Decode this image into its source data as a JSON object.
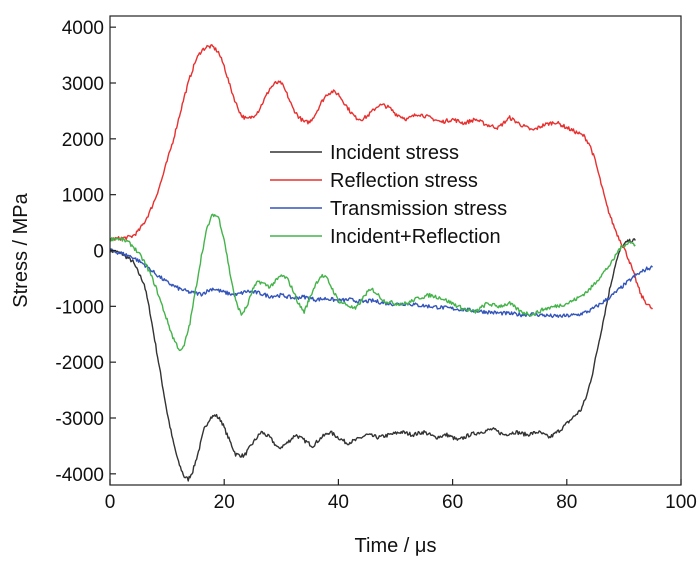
{
  "chart_data": {
    "type": "line",
    "xlabel": "Time / μs",
    "ylabel": "Stress / MPa",
    "xlim": [
      0,
      100
    ],
    "ylim": [
      -4200,
      4200
    ],
    "x_ticks": [
      0,
      20,
      40,
      60,
      80,
      100
    ],
    "y_ticks": [
      -4000,
      -3000,
      -2000,
      -1000,
      0,
      1000,
      2000,
      3000,
      4000
    ],
    "x_tick_labels": [
      "0",
      "20",
      "40",
      "60",
      "80",
      "100"
    ],
    "y_tick_labels": [
      "-4000",
      "-3000",
      "-2000",
      "-1000",
      "0",
      "1000",
      "2000",
      "3000",
      "4000"
    ],
    "grid": false,
    "legend_position": "center",
    "series": [
      {
        "name": "Incident stress",
        "color": "#333333",
        "x": [
          0,
          2,
          4,
          6,
          7,
          8,
          9,
          10,
          11,
          12,
          13,
          13.7,
          14.5,
          15.5,
          16.5,
          17.5,
          18.5,
          19.5,
          20.5,
          22,
          23.5,
          25,
          26.5,
          28,
          29.5,
          31,
          32.5,
          34,
          35.5,
          37,
          38.5,
          40,
          41.5,
          43,
          45,
          47,
          49,
          51,
          53,
          55,
          57,
          59,
          61,
          63,
          65,
          67,
          69,
          71,
          73,
          75,
          77,
          79,
          81,
          82.5,
          83.5,
          84.5,
          85.5,
          86.5,
          87.5,
          88.5,
          89.5,
          90.5,
          91.5,
          92
        ],
        "y": [
          0,
          -50,
          -200,
          -600,
          -1100,
          -1700,
          -2300,
          -2900,
          -3400,
          -3800,
          -4050,
          -4100,
          -3950,
          -3600,
          -3200,
          -3000,
          -2950,
          -3050,
          -3300,
          -3650,
          -3680,
          -3450,
          -3250,
          -3350,
          -3550,
          -3450,
          -3300,
          -3400,
          -3500,
          -3350,
          -3250,
          -3350,
          -3450,
          -3400,
          -3300,
          -3350,
          -3300,
          -3250,
          -3300,
          -3250,
          -3350,
          -3300,
          -3400,
          -3300,
          -3250,
          -3200,
          -3300,
          -3250,
          -3300,
          -3250,
          -3350,
          -3200,
          -3000,
          -2850,
          -2600,
          -2200,
          -1700,
          -1200,
          -700,
          -250,
          50,
          150,
          180,
          180
        ]
      },
      {
        "name": "Reflection stress",
        "color": "#e8302f",
        "x": [
          0,
          2,
          3,
          4,
          5,
          6,
          7,
          8,
          9,
          10,
          11,
          12,
          13,
          14,
          15,
          16,
          17,
          18,
          19,
          20,
          21,
          22,
          23,
          24,
          25,
          26,
          27,
          28,
          29,
          30,
          31,
          32,
          33,
          34,
          35,
          36,
          37,
          38,
          39,
          40,
          41,
          42,
          43,
          44,
          45,
          46,
          47,
          48,
          49,
          50,
          52,
          54,
          56,
          58,
          60,
          62,
          64,
          66,
          68,
          70,
          72,
          74,
          76,
          78,
          80,
          81,
          82,
          83,
          84,
          85,
          86,
          87,
          88,
          89,
          90,
          91,
          92,
          93,
          94,
          95
        ],
        "y": [
          200,
          220,
          230,
          260,
          350,
          500,
          700,
          950,
          1250,
          1600,
          1950,
          2350,
          2750,
          3100,
          3400,
          3580,
          3650,
          3650,
          3550,
          3300,
          2950,
          2650,
          2420,
          2350,
          2400,
          2500,
          2700,
          2900,
          3000,
          3000,
          2800,
          2550,
          2400,
          2300,
          2300,
          2450,
          2650,
          2800,
          2850,
          2800,
          2650,
          2500,
          2380,
          2350,
          2400,
          2500,
          2600,
          2600,
          2550,
          2450,
          2350,
          2450,
          2380,
          2300,
          2350,
          2280,
          2350,
          2250,
          2200,
          2380,
          2250,
          2150,
          2250,
          2300,
          2200,
          2150,
          2100,
          2050,
          1900,
          1600,
          1200,
          800,
          500,
          250,
          50,
          -200,
          -500,
          -800,
          -950,
          -1050
        ]
      },
      {
        "name": "Transmission stress",
        "color": "#3355bb",
        "x": [
          0,
          2,
          4,
          6,
          8,
          10,
          12,
          14,
          16,
          18,
          20,
          22,
          24,
          26,
          28,
          30,
          32,
          34,
          36,
          38,
          40,
          42,
          44,
          46,
          48,
          50,
          52,
          54,
          56,
          58,
          60,
          62,
          64,
          66,
          68,
          70,
          72,
          74,
          76,
          78,
          80,
          82,
          84,
          86,
          88,
          90,
          92,
          94,
          95
        ],
        "y": [
          0,
          -50,
          -120,
          -250,
          -420,
          -570,
          -680,
          -750,
          -780,
          -680,
          -750,
          -800,
          -730,
          -760,
          -820,
          -800,
          -850,
          -830,
          -880,
          -860,
          -900,
          -880,
          -920,
          -900,
          -940,
          -960,
          -950,
          -980,
          -1000,
          -1020,
          -1040,
          -1060,
          -1080,
          -1100,
          -1120,
          -1130,
          -1150,
          -1140,
          -1160,
          -1180,
          -1170,
          -1150,
          -1080,
          -950,
          -800,
          -620,
          -450,
          -330,
          -300
        ]
      },
      {
        "name": "Incident+Reflection",
        "color": "#44b44a",
        "x": [
          0,
          1,
          2,
          3,
          4,
          5,
          6,
          7,
          8,
          9,
          10,
          11,
          12,
          12.5,
          13,
          14,
          15,
          16,
          17,
          18,
          19,
          20,
          21,
          22,
          23,
          24,
          25,
          26,
          27,
          28,
          29,
          30,
          31,
          32,
          33,
          34,
          35,
          36,
          37,
          38,
          39,
          40,
          41,
          42,
          43,
          44,
          45,
          46,
          47,
          48,
          50,
          52,
          54,
          56,
          58,
          60,
          62,
          64,
          66,
          68,
          70,
          72,
          74,
          76,
          78,
          80,
          82,
          84,
          86,
          88,
          89,
          90,
          91,
          92
        ],
        "y": [
          200,
          220,
          200,
          160,
          80,
          -50,
          -200,
          -400,
          -650,
          -950,
          -1250,
          -1550,
          -1750,
          -1800,
          -1700,
          -1300,
          -700,
          -100,
          400,
          650,
          600,
          200,
          -400,
          -900,
          -1150,
          -1000,
          -700,
          -550,
          -600,
          -650,
          -550,
          -450,
          -500,
          -700,
          -950,
          -1100,
          -850,
          -600,
          -450,
          -500,
          -700,
          -900,
          -950,
          -1000,
          -1050,
          -900,
          -750,
          -700,
          -800,
          -900,
          -950,
          -950,
          -850,
          -800,
          -850,
          -950,
          -1050,
          -1100,
          -950,
          -1000,
          -950,
          -1100,
          -1150,
          -1050,
          -1000,
          -950,
          -850,
          -700,
          -450,
          -200,
          0,
          100,
          150,
          100
        ]
      }
    ]
  }
}
